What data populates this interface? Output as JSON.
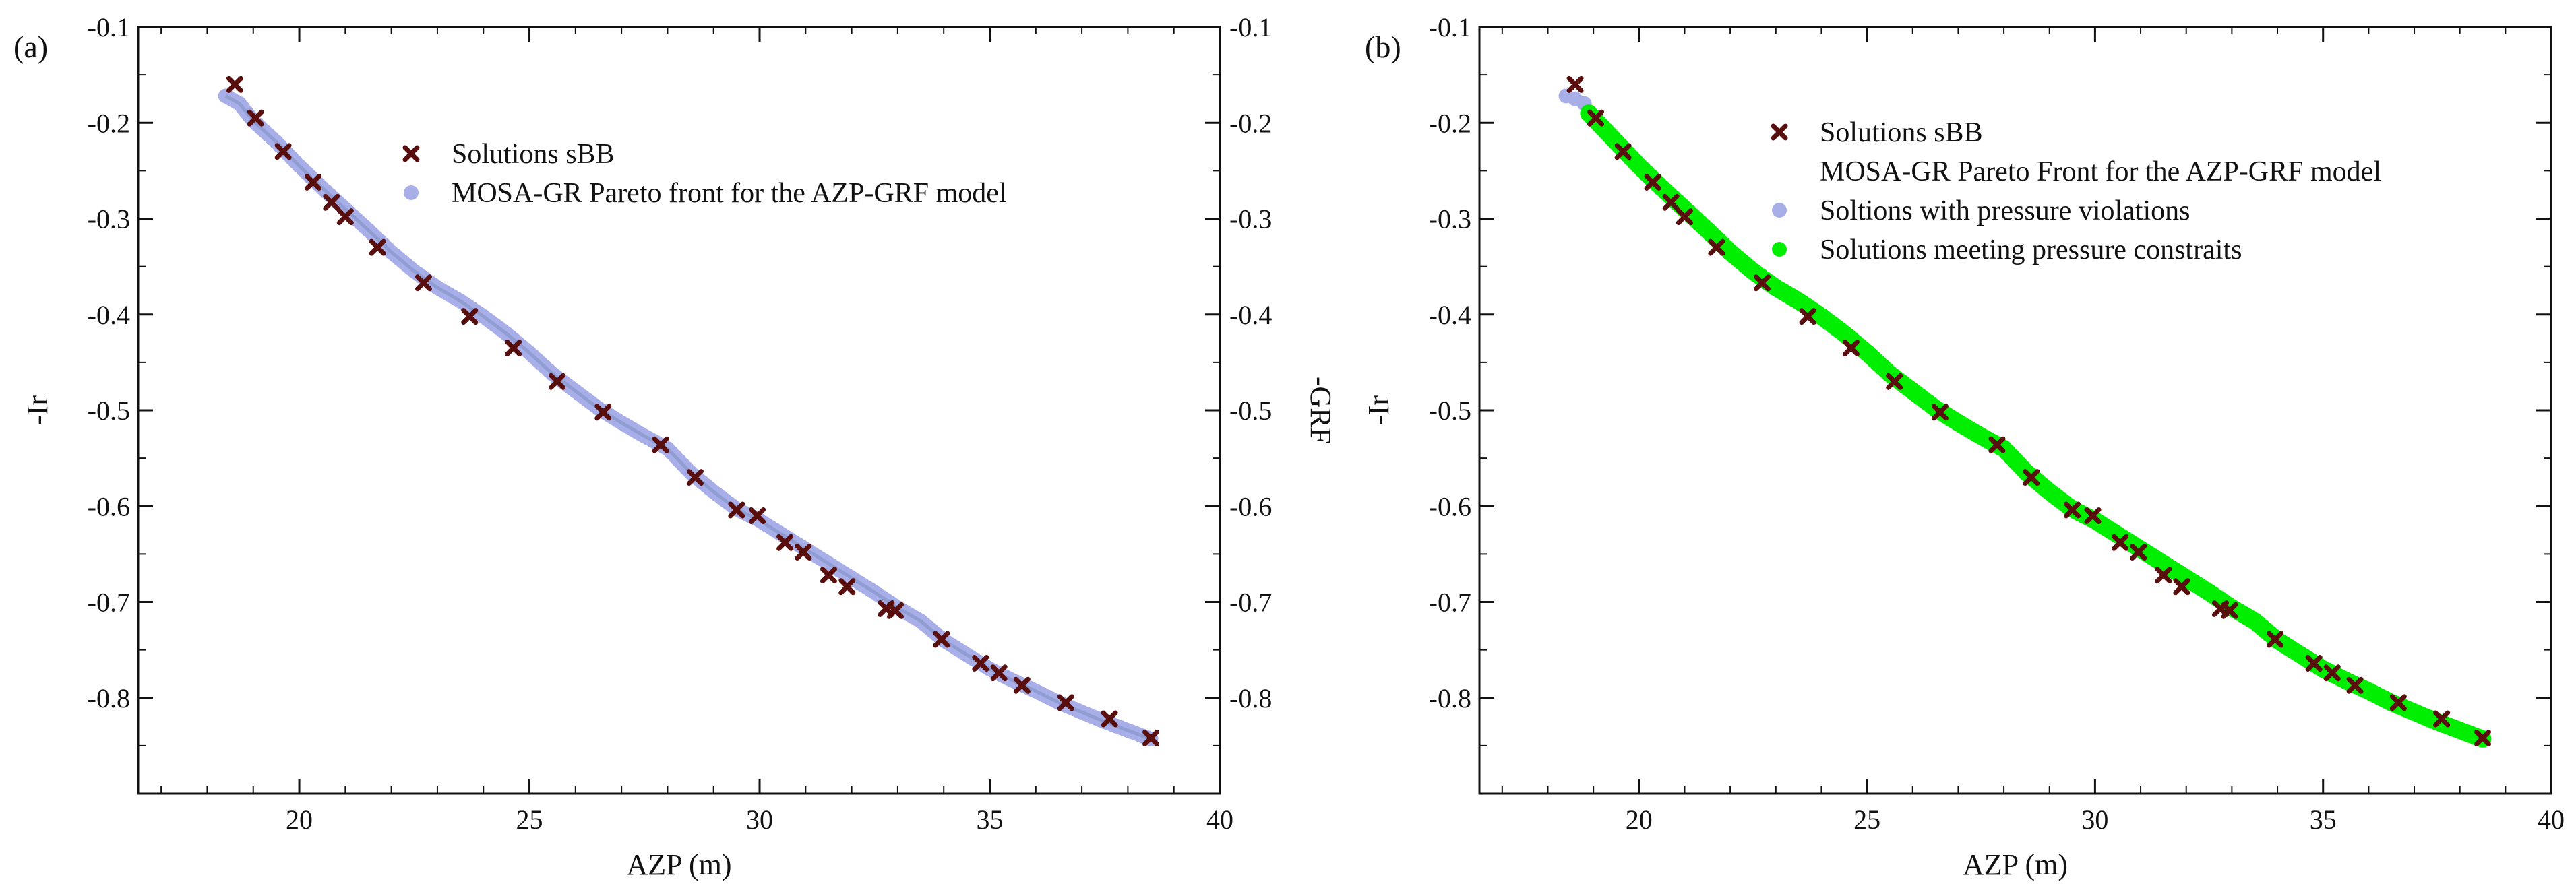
{
  "colors": {
    "sbb_marker": "#5a0f0f",
    "pareto_points": "#a7aee8",
    "pareto_core": "#7d8fbf",
    "violation_points": "#a7aee8",
    "feasible_points": "#00ee00",
    "axis": "#111111"
  },
  "chart_data": [
    {
      "type": "scatter",
      "panel_label": "(a)",
      "xlabel": "AZP (m)",
      "ylabel": "-Ir",
      "y2label": "-GRF",
      "xlim": [
        16.5,
        40
      ],
      "ylim": [
        -0.9,
        -0.1
      ],
      "xticks": [
        20,
        25,
        30,
        35,
        40
      ],
      "yticks": [
        -0.1,
        -0.2,
        -0.3,
        -0.4,
        -0.5,
        -0.6,
        -0.7,
        -0.8
      ],
      "legend_position": "top-center",
      "legend": [
        {
          "label": "Solutions sBB",
          "marker": "x"
        },
        {
          "label": "MOSA-GR Pareto front for the AZP-GRF model",
          "marker": "dot"
        }
      ],
      "series": [
        {
          "name": "Solutions sBB",
          "marker": "x",
          "x": [
            18.6,
            19.05,
            19.65,
            20.3,
            20.7,
            21.0,
            21.7,
            22.7,
            23.7,
            24.65,
            25.6,
            26.6,
            27.85,
            28.6,
            29.5,
            29.95,
            30.55,
            30.95,
            31.5,
            31.9,
            32.75,
            32.95,
            33.95,
            34.8,
            35.2,
            35.7,
            36.65,
            37.6,
            38.5
          ],
          "y": [
            -0.16,
            -0.195,
            -0.23,
            -0.262,
            -0.283,
            -0.298,
            -0.33,
            -0.367,
            -0.402,
            -0.435,
            -0.47,
            -0.502,
            -0.536,
            -0.57,
            -0.604,
            -0.61,
            -0.638,
            -0.648,
            -0.672,
            -0.684,
            -0.707,
            -0.709,
            -0.739,
            -0.764,
            -0.774,
            -0.787,
            -0.805,
            -0.822,
            -0.842
          ]
        },
        {
          "name": "MOSA-GR Pareto front for the AZP-GRF model",
          "marker": "dot",
          "x": [
            18.4,
            18.7,
            19.0,
            19.5,
            20.0,
            20.5,
            21.0,
            21.5,
            22.0,
            22.5,
            23.0,
            23.5,
            24.0,
            24.5,
            25.0,
            25.5,
            26.0,
            26.5,
            27.0,
            27.5,
            28.0,
            28.5,
            29.0,
            29.5,
            30.0,
            30.5,
            31.0,
            31.5,
            32.0,
            32.5,
            33.0,
            33.5,
            34.0,
            34.5,
            35.0,
            35.5,
            36.0,
            36.5,
            37.0,
            37.5,
            38.0,
            38.5
          ],
          "y": [
            -0.172,
            -0.18,
            -0.198,
            -0.22,
            -0.245,
            -0.268,
            -0.29,
            -0.312,
            -0.335,
            -0.355,
            -0.372,
            -0.386,
            -0.402,
            -0.42,
            -0.44,
            -0.462,
            -0.48,
            -0.498,
            -0.513,
            -0.527,
            -0.54,
            -0.565,
            -0.585,
            -0.603,
            -0.615,
            -0.63,
            -0.645,
            -0.66,
            -0.675,
            -0.69,
            -0.706,
            -0.72,
            -0.74,
            -0.755,
            -0.77,
            -0.782,
            -0.793,
            -0.805,
            -0.815,
            -0.825,
            -0.834,
            -0.843
          ]
        }
      ]
    },
    {
      "type": "scatter",
      "panel_label": "(b)",
      "xlabel": "AZP (m)",
      "ylabel": "-Ir",
      "xlim": [
        16.5,
        40
      ],
      "ylim": [
        -0.9,
        -0.1
      ],
      "xticks": [
        20,
        25,
        30,
        35,
        40
      ],
      "yticks": [
        -0.1,
        -0.2,
        -0.3,
        -0.4,
        -0.5,
        -0.6,
        -0.7,
        -0.8
      ],
      "legend_position": "top-center",
      "legend": [
        {
          "label": "Solutions sBB",
          "marker": "x"
        },
        {
          "label": "MOSA-GR Pareto Front for the AZP-GRF model",
          "marker": "none"
        },
        {
          "label": "Soltions with pressure violations",
          "marker": "dot-violation"
        },
        {
          "label": "Solutions meeting pressure constraits",
          "marker": "dot-feasible"
        }
      ],
      "series": [
        {
          "name": "Solutions sBB",
          "marker": "x",
          "x": [
            18.6,
            19.05,
            19.65,
            20.3,
            20.7,
            21.0,
            21.7,
            22.7,
            23.7,
            24.65,
            25.6,
            26.6,
            27.85,
            28.6,
            29.5,
            29.95,
            30.55,
            30.95,
            31.5,
            31.9,
            32.75,
            32.95,
            33.95,
            34.8,
            35.2,
            35.7,
            36.65,
            37.6,
            38.5
          ],
          "y": [
            -0.16,
            -0.195,
            -0.23,
            -0.262,
            -0.283,
            -0.298,
            -0.33,
            -0.367,
            -0.402,
            -0.435,
            -0.47,
            -0.502,
            -0.536,
            -0.57,
            -0.604,
            -0.61,
            -0.638,
            -0.648,
            -0.672,
            -0.684,
            -0.707,
            -0.709,
            -0.739,
            -0.764,
            -0.774,
            -0.787,
            -0.805,
            -0.822,
            -0.842
          ]
        },
        {
          "name": "Soltions with pressure violations",
          "marker": "dot-violation",
          "x": [
            18.4,
            18.6,
            18.8
          ],
          "y": [
            -0.172,
            -0.175,
            -0.18
          ]
        },
        {
          "name": "Solutions meeting pressure constraits",
          "marker": "dot-feasible",
          "x": [
            18.9,
            19.2,
            19.5,
            20.0,
            20.5,
            21.0,
            21.5,
            22.0,
            22.5,
            23.0,
            23.5,
            24.0,
            24.5,
            25.0,
            25.5,
            26.0,
            26.5,
            27.0,
            27.5,
            28.0,
            28.5,
            29.0,
            29.5,
            30.0,
            30.5,
            31.0,
            31.5,
            32.0,
            32.5,
            33.0,
            33.5,
            34.0,
            34.5,
            35.0,
            35.5,
            36.0,
            36.5,
            37.0,
            37.5,
            38.0,
            38.5
          ],
          "y": [
            -0.19,
            -0.205,
            -0.22,
            -0.245,
            -0.268,
            -0.29,
            -0.312,
            -0.335,
            -0.355,
            -0.372,
            -0.386,
            -0.402,
            -0.42,
            -0.44,
            -0.462,
            -0.48,
            -0.498,
            -0.513,
            -0.527,
            -0.54,
            -0.565,
            -0.585,
            -0.603,
            -0.615,
            -0.63,
            -0.645,
            -0.66,
            -0.675,
            -0.69,
            -0.706,
            -0.72,
            -0.74,
            -0.755,
            -0.77,
            -0.782,
            -0.793,
            -0.805,
            -0.815,
            -0.825,
            -0.834,
            -0.843
          ]
        }
      ]
    }
  ]
}
